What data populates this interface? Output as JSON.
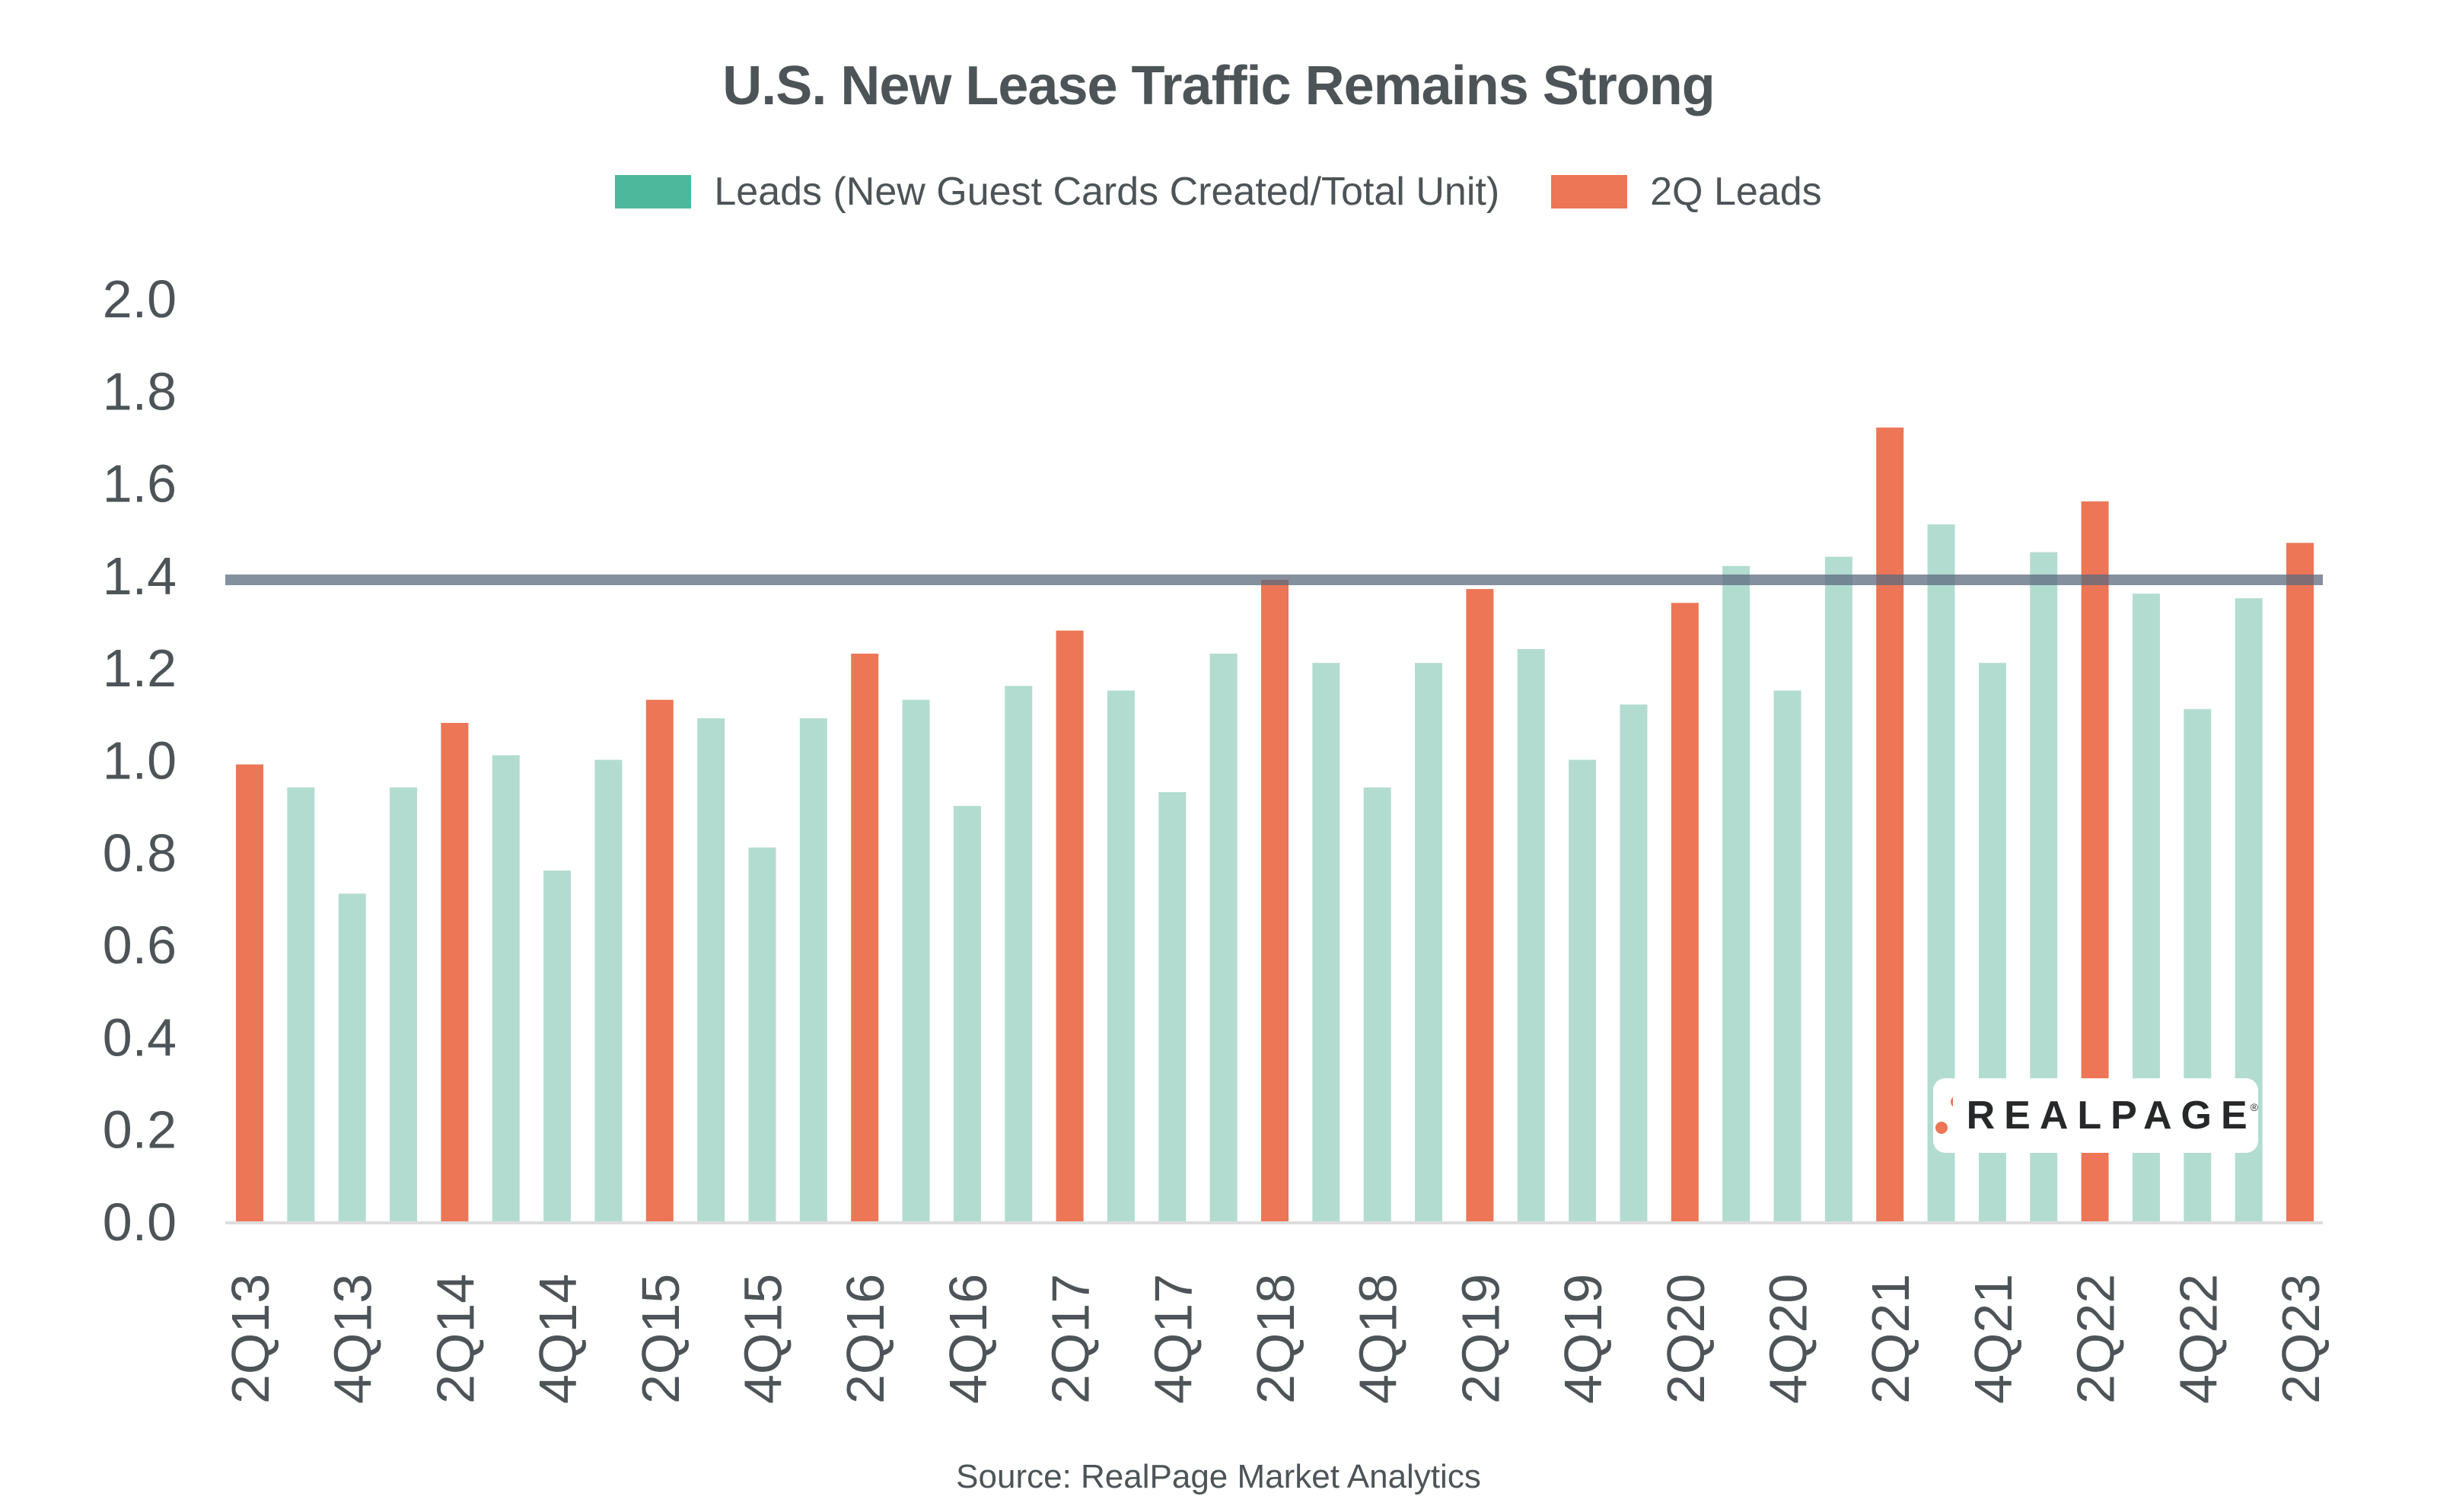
{
  "chart_data": {
    "type": "bar",
    "title": "U.S. New Lease Traffic Remains Strong",
    "xlabel": "",
    "ylabel": "",
    "ylim": [
      0,
      2.0
    ],
    "yticks": [
      "0.0",
      "0.2",
      "0.4",
      "0.6",
      "0.8",
      "1.0",
      "1.2",
      "1.4",
      "1.6",
      "1.8",
      "2.0"
    ],
    "categories": [
      "2Q13",
      "3Q13",
      "4Q13",
      "1Q14",
      "2Q14",
      "3Q14",
      "4Q14",
      "1Q15",
      "2Q15",
      "3Q15",
      "4Q15",
      "1Q16",
      "2Q16",
      "3Q16",
      "4Q16",
      "1Q17",
      "2Q17",
      "3Q17",
      "4Q17",
      "1Q18",
      "2Q18",
      "3Q18",
      "4Q18",
      "1Q19",
      "2Q19",
      "3Q19",
      "4Q19",
      "1Q20",
      "2Q20",
      "3Q20",
      "4Q20",
      "1Q21",
      "2Q21",
      "3Q21",
      "4Q21",
      "1Q22",
      "2Q22",
      "3Q22",
      "4Q22",
      "1Q23",
      "2Q23"
    ],
    "xtick_labels": [
      "2Q13",
      "4Q13",
      "2Q14",
      "4Q14",
      "2Q15",
      "4Q15",
      "2Q16",
      "4Q16",
      "2Q17",
      "4Q17",
      "2Q18",
      "4Q18",
      "2Q19",
      "4Q19",
      "2Q20",
      "4Q20",
      "2Q21",
      "4Q21",
      "2Q22",
      "4Q22",
      "2Q23"
    ],
    "values": [
      0.99,
      0.94,
      0.71,
      0.94,
      1.08,
      1.01,
      0.76,
      1.0,
      1.13,
      1.09,
      0.81,
      1.09,
      1.23,
      1.13,
      0.9,
      1.16,
      1.28,
      1.15,
      0.93,
      1.23,
      1.39,
      1.21,
      0.94,
      1.21,
      1.37,
      1.24,
      1.0,
      1.12,
      1.34,
      1.42,
      1.15,
      1.44,
      1.72,
      1.51,
      1.21,
      1.45,
      1.56,
      1.36,
      1.11,
      1.35,
      1.47
    ],
    "series": [
      {
        "name": "Leads (New Guest Cards Created/Total Unit)",
        "color": "#b3dcd1",
        "legend_color": "#4db89c",
        "applies_to": "non-2Q quarters"
      },
      {
        "name": "2Q Leads",
        "color": "#ec7655",
        "applies_to": "2Q quarters"
      }
    ],
    "reference_line": {
      "value": 1.39,
      "color": "#5c6b7e"
    },
    "legend": {
      "position": "top"
    },
    "grid": false,
    "source": "Source: RealPage Market Analytics"
  },
  "logo": {
    "text": "REALPAGE",
    "registered": "®",
    "dot_color": "#ec7655"
  }
}
